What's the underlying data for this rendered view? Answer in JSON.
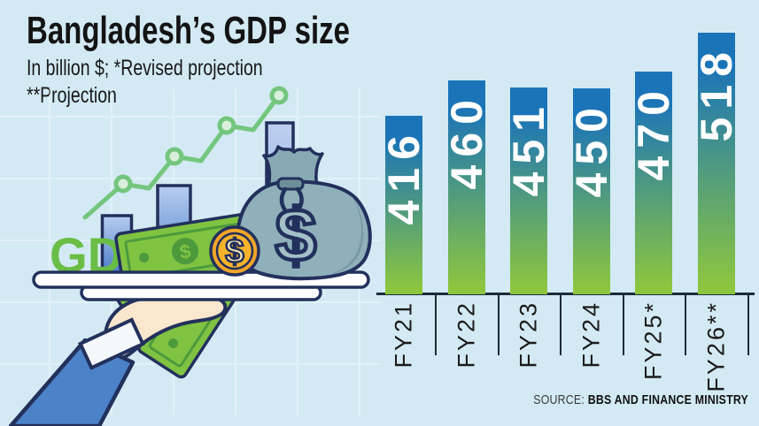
{
  "header": {
    "title": "Bangladesh’s GDP size",
    "subtitle_line1": "In billion $; *Revised projection",
    "subtitle_line2": "**Projection"
  },
  "illustration": {
    "gdp_label": "GDP",
    "dollar_sign": "$"
  },
  "chart_data": {
    "type": "bar",
    "title": "Bangladesh’s GDP size",
    "unit": "In billion $",
    "footnote_asterisk": "Revised projection",
    "footnote_double_asterisk": "Projection",
    "categories": [
      "FY21",
      "FY22",
      "FY23",
      "FY24",
      "FY25*",
      "FY26**"
    ],
    "values": [
      416,
      460,
      451,
      450,
      470,
      518
    ],
    "bar_color_top": "#1b74b8",
    "bar_color_bottom": "#8cc63f",
    "value_label_color": "#ffffff",
    "axis_label_color": "#1b1b1b",
    "legend_position": "none",
    "grid": "off"
  },
  "source": {
    "prefix": "SOURCE:",
    "text": "BBS AND FINANCE MINISTRY"
  }
}
